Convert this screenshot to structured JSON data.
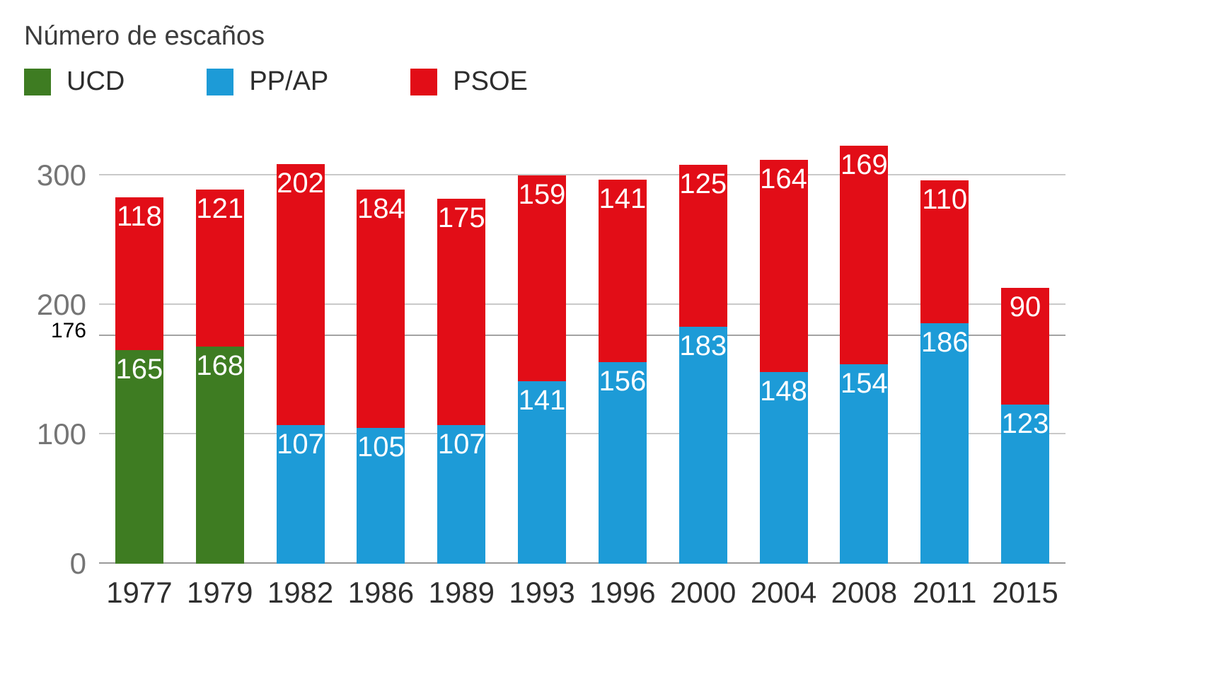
{
  "title": "Número de escaños",
  "legend": [
    {
      "label": "UCD",
      "color": "#3e7c22"
    },
    {
      "label": "PP/AP",
      "color": "#1d9bd7"
    },
    {
      "label": "PSOE",
      "color": "#e20d17"
    }
  ],
  "chart_data": {
    "type": "bar",
    "stacked": true,
    "title": "Número de escaños",
    "xlabel": "",
    "ylabel": "",
    "categories": [
      "1977",
      "1979",
      "1982",
      "1986",
      "1989",
      "1993",
      "1996",
      "2000",
      "2004",
      "2008",
      "2011",
      "2015"
    ],
    "series": [
      {
        "name": "UCD",
        "color": "#3e7c22",
        "values": [
          165,
          168,
          null,
          null,
          null,
          null,
          null,
          null,
          null,
          null,
          null,
          null
        ]
      },
      {
        "name": "PP/AP",
        "color": "#1d9bd7",
        "values": [
          null,
          null,
          107,
          105,
          107,
          141,
          156,
          183,
          148,
          154,
          186,
          123
        ]
      },
      {
        "name": "PSOE",
        "color": "#e20d17",
        "values": [
          118,
          121,
          202,
          184,
          175,
          159,
          141,
          125,
          164,
          169,
          110,
          90
        ]
      }
    ],
    "totals": [
      283,
      289,
      309,
      289,
      282,
      300,
      297,
      308,
      312,
      323,
      296,
      213
    ],
    "yticks": [
      0,
      100,
      200,
      300
    ],
    "ylim": [
      0,
      331
    ],
    "reference_line": {
      "value": 176,
      "label": "176"
    },
    "grid": true,
    "legend_position": "top"
  }
}
